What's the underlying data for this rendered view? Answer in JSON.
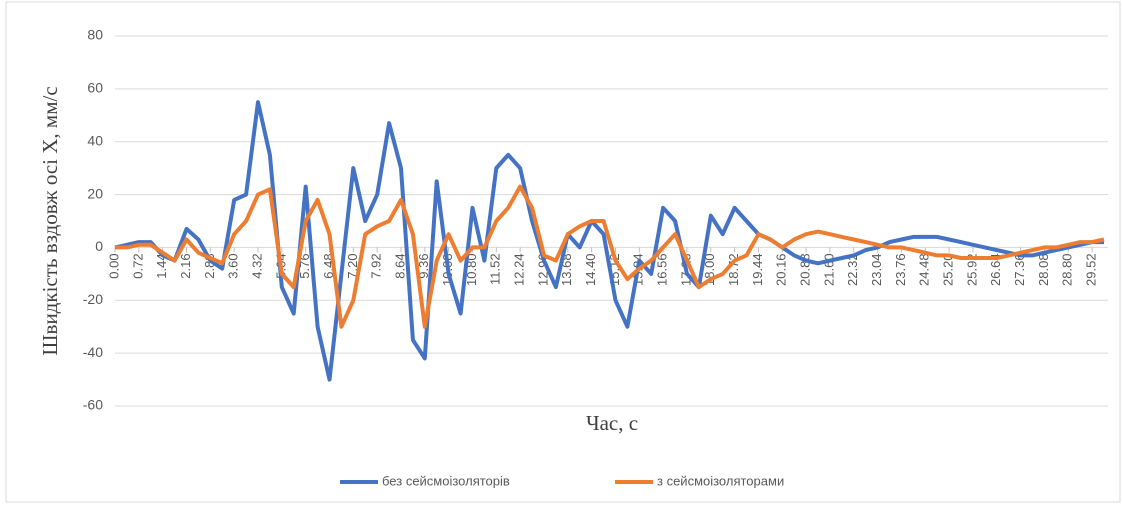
{
  "chart_data": {
    "type": "line",
    "x_label": "Час, с",
    "y_label": "Швидкість вздовж осі Х, мм/с",
    "x": [
      0,
      0.36,
      0.72,
      1.08,
      1.44,
      1.8,
      2.16,
      2.52,
      2.88,
      3.24,
      3.6,
      3.96,
      4.32,
      4.68,
      5.04,
      5.4,
      5.76,
      6.12,
      6.48,
      6.84,
      7.2,
      7.56,
      7.92,
      8.28,
      8.64,
      9,
      9.36,
      9.72,
      10.08,
      10.44,
      10.8,
      11.16,
      11.52,
      11.88,
      12.24,
      12.6,
      12.96,
      13.32,
      13.68,
      14.04,
      14.4,
      14.76,
      15.12,
      15.48,
      15.84,
      16.2,
      16.56,
      16.92,
      17.28,
      17.64,
      18,
      18.36,
      18.72,
      19.08,
      19.44,
      19.8,
      20.16,
      20.52,
      20.88,
      21.24,
      21.6,
      21.96,
      22.32,
      22.68,
      23.04,
      23.4,
      23.76,
      24.12,
      24.48,
      24.84,
      25.2,
      25.56,
      25.92,
      26.28,
      26.64,
      27,
      27.36,
      27.72,
      28.08,
      28.44,
      28.8,
      29.16,
      29.52,
      29.88
    ],
    "series": [
      {
        "name": "без сейсмоізоляторів",
        "color": "#4472c4",
        "values": [
          0,
          1,
          2,
          2,
          -3,
          -5,
          7,
          3,
          -5,
          -8,
          18,
          20,
          55,
          35,
          -15,
          -25,
          23,
          -30,
          -50,
          -10,
          30,
          10,
          20,
          47,
          30,
          -35,
          -42,
          25,
          -10,
          -25,
          15,
          -5,
          30,
          35,
          30,
          10,
          -5,
          -15,
          5,
          0,
          10,
          5,
          -20,
          -30,
          -5,
          -10,
          15,
          10,
          -10,
          -15,
          12,
          5,
          15,
          10,
          5,
          3,
          0,
          -3,
          -5,
          -6,
          -5,
          -4,
          -3,
          -1,
          0,
          2,
          3,
          4,
          4,
          4,
          3,
          2,
          1,
          0,
          -1,
          -2,
          -3,
          -3,
          -2,
          -1,
          0,
          1,
          2,
          2
        ]
      },
      {
        "name": "з сейсмоізоляторами",
        "color": "#ed7d31",
        "values": [
          0,
          0,
          1,
          1,
          -2,
          -5,
          3,
          -2,
          -4,
          -6,
          5,
          10,
          20,
          22,
          -10,
          -15,
          10,
          18,
          5,
          -30,
          -20,
          5,
          8,
          10,
          18,
          5,
          -30,
          -5,
          5,
          -5,
          0,
          0,
          10,
          15,
          23,
          15,
          -3,
          -5,
          5,
          8,
          10,
          10,
          -5,
          -12,
          -8,
          -5,
          0,
          5,
          -5,
          -15,
          -12,
          -10,
          -5,
          -3,
          5,
          3,
          0,
          3,
          5,
          6,
          5,
          4,
          3,
          2,
          1,
          0,
          0,
          -1,
          -2,
          -3,
          -3,
          -4,
          -4,
          -4,
          -4,
          -3,
          -2,
          -1,
          0,
          0,
          1,
          2,
          2,
          3
        ]
      }
    ],
    "xlim": [
      0,
      30
    ],
    "xticks": [
      {
        "value": 0,
        "label": "0.00"
      },
      {
        "value": 0.72,
        "label": "0.72"
      },
      {
        "value": 1.44,
        "label": "1.44"
      },
      {
        "value": 2.16,
        "label": "2.16"
      },
      {
        "value": 2.88,
        "label": "2.88"
      },
      {
        "value": 3.6,
        "label": "3.60"
      },
      {
        "value": 4.32,
        "label": "4.32"
      },
      {
        "value": 5.04,
        "label": "5.04"
      },
      {
        "value": 5.76,
        "label": "5.76"
      },
      {
        "value": 6.48,
        "label": "6.48"
      },
      {
        "value": 7.2,
        "label": "7.20"
      },
      {
        "value": 7.92,
        "label": "7.92"
      },
      {
        "value": 8.64,
        "label": "8.64"
      },
      {
        "value": 9.36,
        "label": "9.36"
      },
      {
        "value": 10.08,
        "label": "10.08"
      },
      {
        "value": 10.8,
        "label": "10.80"
      },
      {
        "value": 11.52,
        "label": "11.52"
      },
      {
        "value": 12.24,
        "label": "12.24"
      },
      {
        "value": 12.96,
        "label": "12.96"
      },
      {
        "value": 13.68,
        "label": "13.68"
      },
      {
        "value": 14.4,
        "label": "14.40"
      },
      {
        "value": 15.12,
        "label": "15.12"
      },
      {
        "value": 15.84,
        "label": "15.84"
      },
      {
        "value": 16.56,
        "label": "16.56"
      },
      {
        "value": 17.28,
        "label": "17.28"
      },
      {
        "value": 18,
        "label": "18.00"
      },
      {
        "value": 18.72,
        "label": "18.72"
      },
      {
        "value": 19.44,
        "label": "19.44"
      },
      {
        "value": 20.16,
        "label": "20.16"
      },
      {
        "value": 20.88,
        "label": "20.88"
      },
      {
        "value": 21.6,
        "label": "21.60"
      },
      {
        "value": 22.32,
        "label": "22.32"
      },
      {
        "value": 23.04,
        "label": "23.04"
      },
      {
        "value": 23.76,
        "label": "23.76"
      },
      {
        "value": 24.48,
        "label": "24.48"
      },
      {
        "value": 25.2,
        "label": "25.20"
      },
      {
        "value": 25.92,
        "label": "25.92"
      },
      {
        "value": 26.64,
        "label": "26.64"
      },
      {
        "value": 27.36,
        "label": "27.36"
      },
      {
        "value": 28.08,
        "label": "28.08"
      },
      {
        "value": 28.8,
        "label": "28.80"
      },
      {
        "value": 29.52,
        "label": "29.52"
      }
    ],
    "ylim": [
      -60,
      80
    ],
    "yticks": [
      -60,
      -40,
      -20,
      0,
      20,
      40,
      60,
      80
    ],
    "grid": true,
    "legend": "bottom"
  }
}
